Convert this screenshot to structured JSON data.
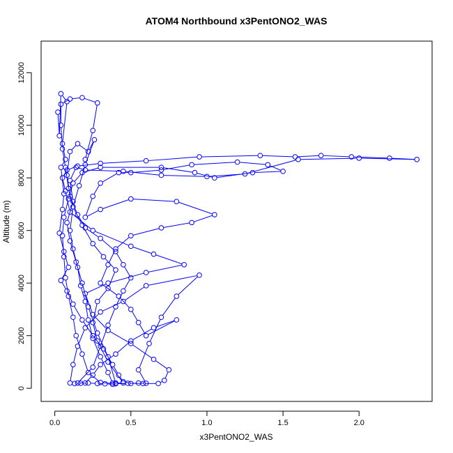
{
  "chart_data": {
    "type": "scatter",
    "title": "ATOM4 Northbound x3PentONO2_WAS",
    "xlabel": "x3PentONO2_WAS",
    "ylabel": "Altitude (m)",
    "xlim": [
      -0.09,
      2.48
    ],
    "ylim": [
      -500,
      13200
    ],
    "xticks": [
      0.0,
      0.5,
      1.0,
      1.5,
      2.0
    ],
    "xtick_labels": [
      "0.0",
      "0.5",
      "1.0",
      "1.5",
      "2.0"
    ],
    "yticks": [
      0,
      2000,
      4000,
      6000,
      8000,
      10000,
      12000
    ],
    "ytick_labels": [
      "0",
      "2000",
      "4000",
      "6000",
      "8000",
      "10000",
      "12000"
    ],
    "grid": false,
    "marker": "open-circle",
    "connected_in_order": true,
    "color": "#0000ff",
    "series": [
      {
        "points": [
          [
            0.02,
            10500
          ],
          [
            0.03,
            9600
          ],
          [
            0.04,
            11200
          ],
          [
            0.08,
            10900
          ],
          [
            0.05,
            9300
          ],
          [
            0.07,
            8700
          ],
          [
            0.04,
            8400
          ],
          [
            0.06,
            7400
          ],
          [
            0.05,
            6800
          ],
          [
            0.03,
            5900
          ],
          [
            0.06,
            5200
          ],
          [
            0.09,
            4600
          ],
          [
            0.04,
            4100
          ],
          [
            0.08,
            3700
          ],
          [
            0.12,
            3200
          ],
          [
            0.18,
            2600
          ],
          [
            0.25,
            2000
          ],
          [
            0.32,
            1500
          ],
          [
            0.38,
            900
          ],
          [
            0.42,
            500
          ],
          [
            0.45,
            250
          ],
          [
            0.5,
            180
          ],
          [
            0.55,
            200
          ],
          [
            0.6,
            190
          ],
          [
            0.55,
            700
          ],
          [
            0.62,
            1700
          ],
          [
            0.7,
            2700
          ],
          [
            0.8,
            3500
          ],
          [
            0.95,
            4300
          ],
          [
            0.6,
            3900
          ],
          [
            0.45,
            3300
          ],
          [
            0.3,
            2900
          ],
          [
            0.2,
            2300
          ],
          [
            0.15,
            1600
          ],
          [
            0.12,
            900
          ],
          [
            0.1,
            200
          ],
          [
            0.13,
            180
          ],
          [
            0.17,
            190
          ],
          [
            0.22,
            200
          ],
          [
            0.28,
            180
          ],
          [
            0.33,
            170
          ],
          [
            0.38,
            150
          ],
          [
            0.4,
            200
          ],
          [
            0.35,
            1200
          ],
          [
            0.28,
            2100
          ],
          [
            0.22,
            3100
          ],
          [
            0.18,
            4000
          ],
          [
            0.14,
            4800
          ],
          [
            0.1,
            5600
          ],
          [
            0.08,
            6300
          ],
          [
            0.12,
            7100
          ],
          [
            0.1,
            7900
          ],
          [
            0.14,
            8400
          ],
          [
            0.2,
            8300
          ],
          [
            0.45,
            8250
          ],
          [
            0.7,
            8100
          ],
          [
            1.0,
            8050
          ],
          [
            1.25,
            8150
          ],
          [
            1.6,
            8700
          ],
          [
            2.0,
            8750
          ],
          [
            2.38,
            8700
          ],
          [
            2.2,
            8750
          ],
          [
            1.95,
            8800
          ],
          [
            1.75,
            8850
          ],
          [
            1.58,
            8800
          ],
          [
            1.35,
            8850
          ],
          [
            0.95,
            8800
          ],
          [
            0.6,
            8650
          ],
          [
            0.3,
            8550
          ],
          [
            0.15,
            8450
          ],
          [
            0.08,
            8300
          ],
          [
            0.05,
            8000
          ],
          [
            0.07,
            7500
          ],
          [
            0.1,
            6700
          ],
          [
            0.25,
            6000
          ],
          [
            0.5,
            5400
          ],
          [
            0.65,
            5100
          ],
          [
            0.85,
            4700
          ],
          [
            0.6,
            4400
          ],
          [
            0.35,
            4000
          ],
          [
            0.2,
            3600
          ],
          [
            0.25,
            2800
          ],
          [
            0.35,
            2200
          ],
          [
            0.5,
            1700
          ],
          [
            0.65,
            1100
          ],
          [
            0.75,
            700
          ],
          [
            0.72,
            300
          ],
          [
            0.68,
            180
          ],
          [
            0.58,
            180
          ],
          [
            0.48,
            190
          ],
          [
            0.4,
            170
          ],
          [
            0.3,
            220
          ],
          [
            0.22,
            600
          ],
          [
            0.18,
            1300
          ],
          [
            0.14,
            2000
          ],
          [
            0.12,
            2700
          ],
          [
            0.09,
            3500
          ],
          [
            0.07,
            4200
          ],
          [
            0.06,
            5000
          ],
          [
            0.05,
            5800
          ],
          [
            0.06,
            6500
          ],
          [
            0.09,
            7200
          ],
          [
            0.12,
            7800
          ],
          [
            0.18,
            8200
          ],
          [
            0.3,
            8400
          ],
          [
            0.7,
            8400
          ],
          [
            0.92,
            8200
          ],
          [
            1.05,
            8000
          ],
          [
            1.3,
            8200
          ],
          [
            1.5,
            8250
          ],
          [
            1.4,
            8500
          ],
          [
            1.2,
            8600
          ],
          [
            0.9,
            8500
          ],
          [
            0.7,
            8300
          ],
          [
            0.5,
            8200
          ],
          [
            0.42,
            8200
          ],
          [
            0.3,
            7800
          ],
          [
            0.25,
            7300
          ],
          [
            0.2,
            6500
          ],
          [
            0.3,
            6800
          ],
          [
            0.5,
            7200
          ],
          [
            0.8,
            7100
          ],
          [
            1.05,
            6600
          ],
          [
            0.9,
            6300
          ],
          [
            0.7,
            6100
          ],
          [
            0.5,
            5800
          ],
          [
            0.4,
            5300
          ],
          [
            0.35,
            4700
          ],
          [
            0.3,
            4000
          ],
          [
            0.42,
            3500
          ],
          [
            0.5,
            3000
          ],
          [
            0.55,
            2500
          ],
          [
            0.6,
            2000
          ],
          [
            0.8,
            2600
          ],
          [
            0.65,
            2300
          ],
          [
            0.5,
            1800
          ],
          [
            0.4,
            1300
          ],
          [
            0.3,
            900
          ],
          [
            0.25,
            500
          ],
          [
            0.2,
            200
          ],
          [
            0.15,
            200
          ],
          [
            0.25,
            800
          ],
          [
            0.3,
            1600
          ],
          [
            0.35,
            2400
          ],
          [
            0.4,
            3100
          ],
          [
            0.45,
            3700
          ],
          [
            0.5,
            4200
          ],
          [
            0.45,
            4700
          ],
          [
            0.4,
            5200
          ],
          [
            0.3,
            5700
          ],
          [
            0.2,
            6100
          ],
          [
            0.15,
            6600
          ],
          [
            0.1,
            7300
          ],
          [
            0.08,
            8100
          ],
          [
            0.1,
            9000
          ],
          [
            0.15,
            9300
          ],
          [
            0.22,
            9000
          ],
          [
            0.26,
            9450
          ],
          [
            0.2,
            8500
          ],
          [
            0.16,
            7700
          ],
          [
            0.12,
            6900
          ],
          [
            0.1,
            6000
          ],
          [
            0.12,
            5300
          ],
          [
            0.15,
            4600
          ],
          [
            0.17,
            3900
          ],
          [
            0.2,
            3300
          ],
          [
            0.22,
            2600
          ],
          [
            0.25,
            1900
          ],
          [
            0.3,
            1200
          ],
          [
            0.35,
            600
          ],
          [
            0.38,
            200
          ],
          [
            0.45,
            200
          ],
          [
            0.35,
            1000
          ],
          [
            0.28,
            1800
          ],
          [
            0.25,
            2500
          ],
          [
            0.28,
            3300
          ],
          [
            0.35,
            3800
          ],
          [
            0.4,
            4500
          ],
          [
            0.32,
            5000
          ],
          [
            0.25,
            5500
          ],
          [
            0.18,
            6200
          ],
          [
            0.12,
            6900
          ],
          [
            0.09,
            7600
          ],
          [
            0.07,
            8400
          ],
          [
            0.05,
            9100
          ],
          [
            0.04,
            10000
          ],
          [
            0.04,
            10800
          ],
          [
            0.1,
            11000
          ],
          [
            0.18,
            11050
          ],
          [
            0.28,
            10850
          ],
          [
            0.25,
            9800
          ],
          [
            0.2,
            8700
          ]
        ]
      }
    ]
  }
}
